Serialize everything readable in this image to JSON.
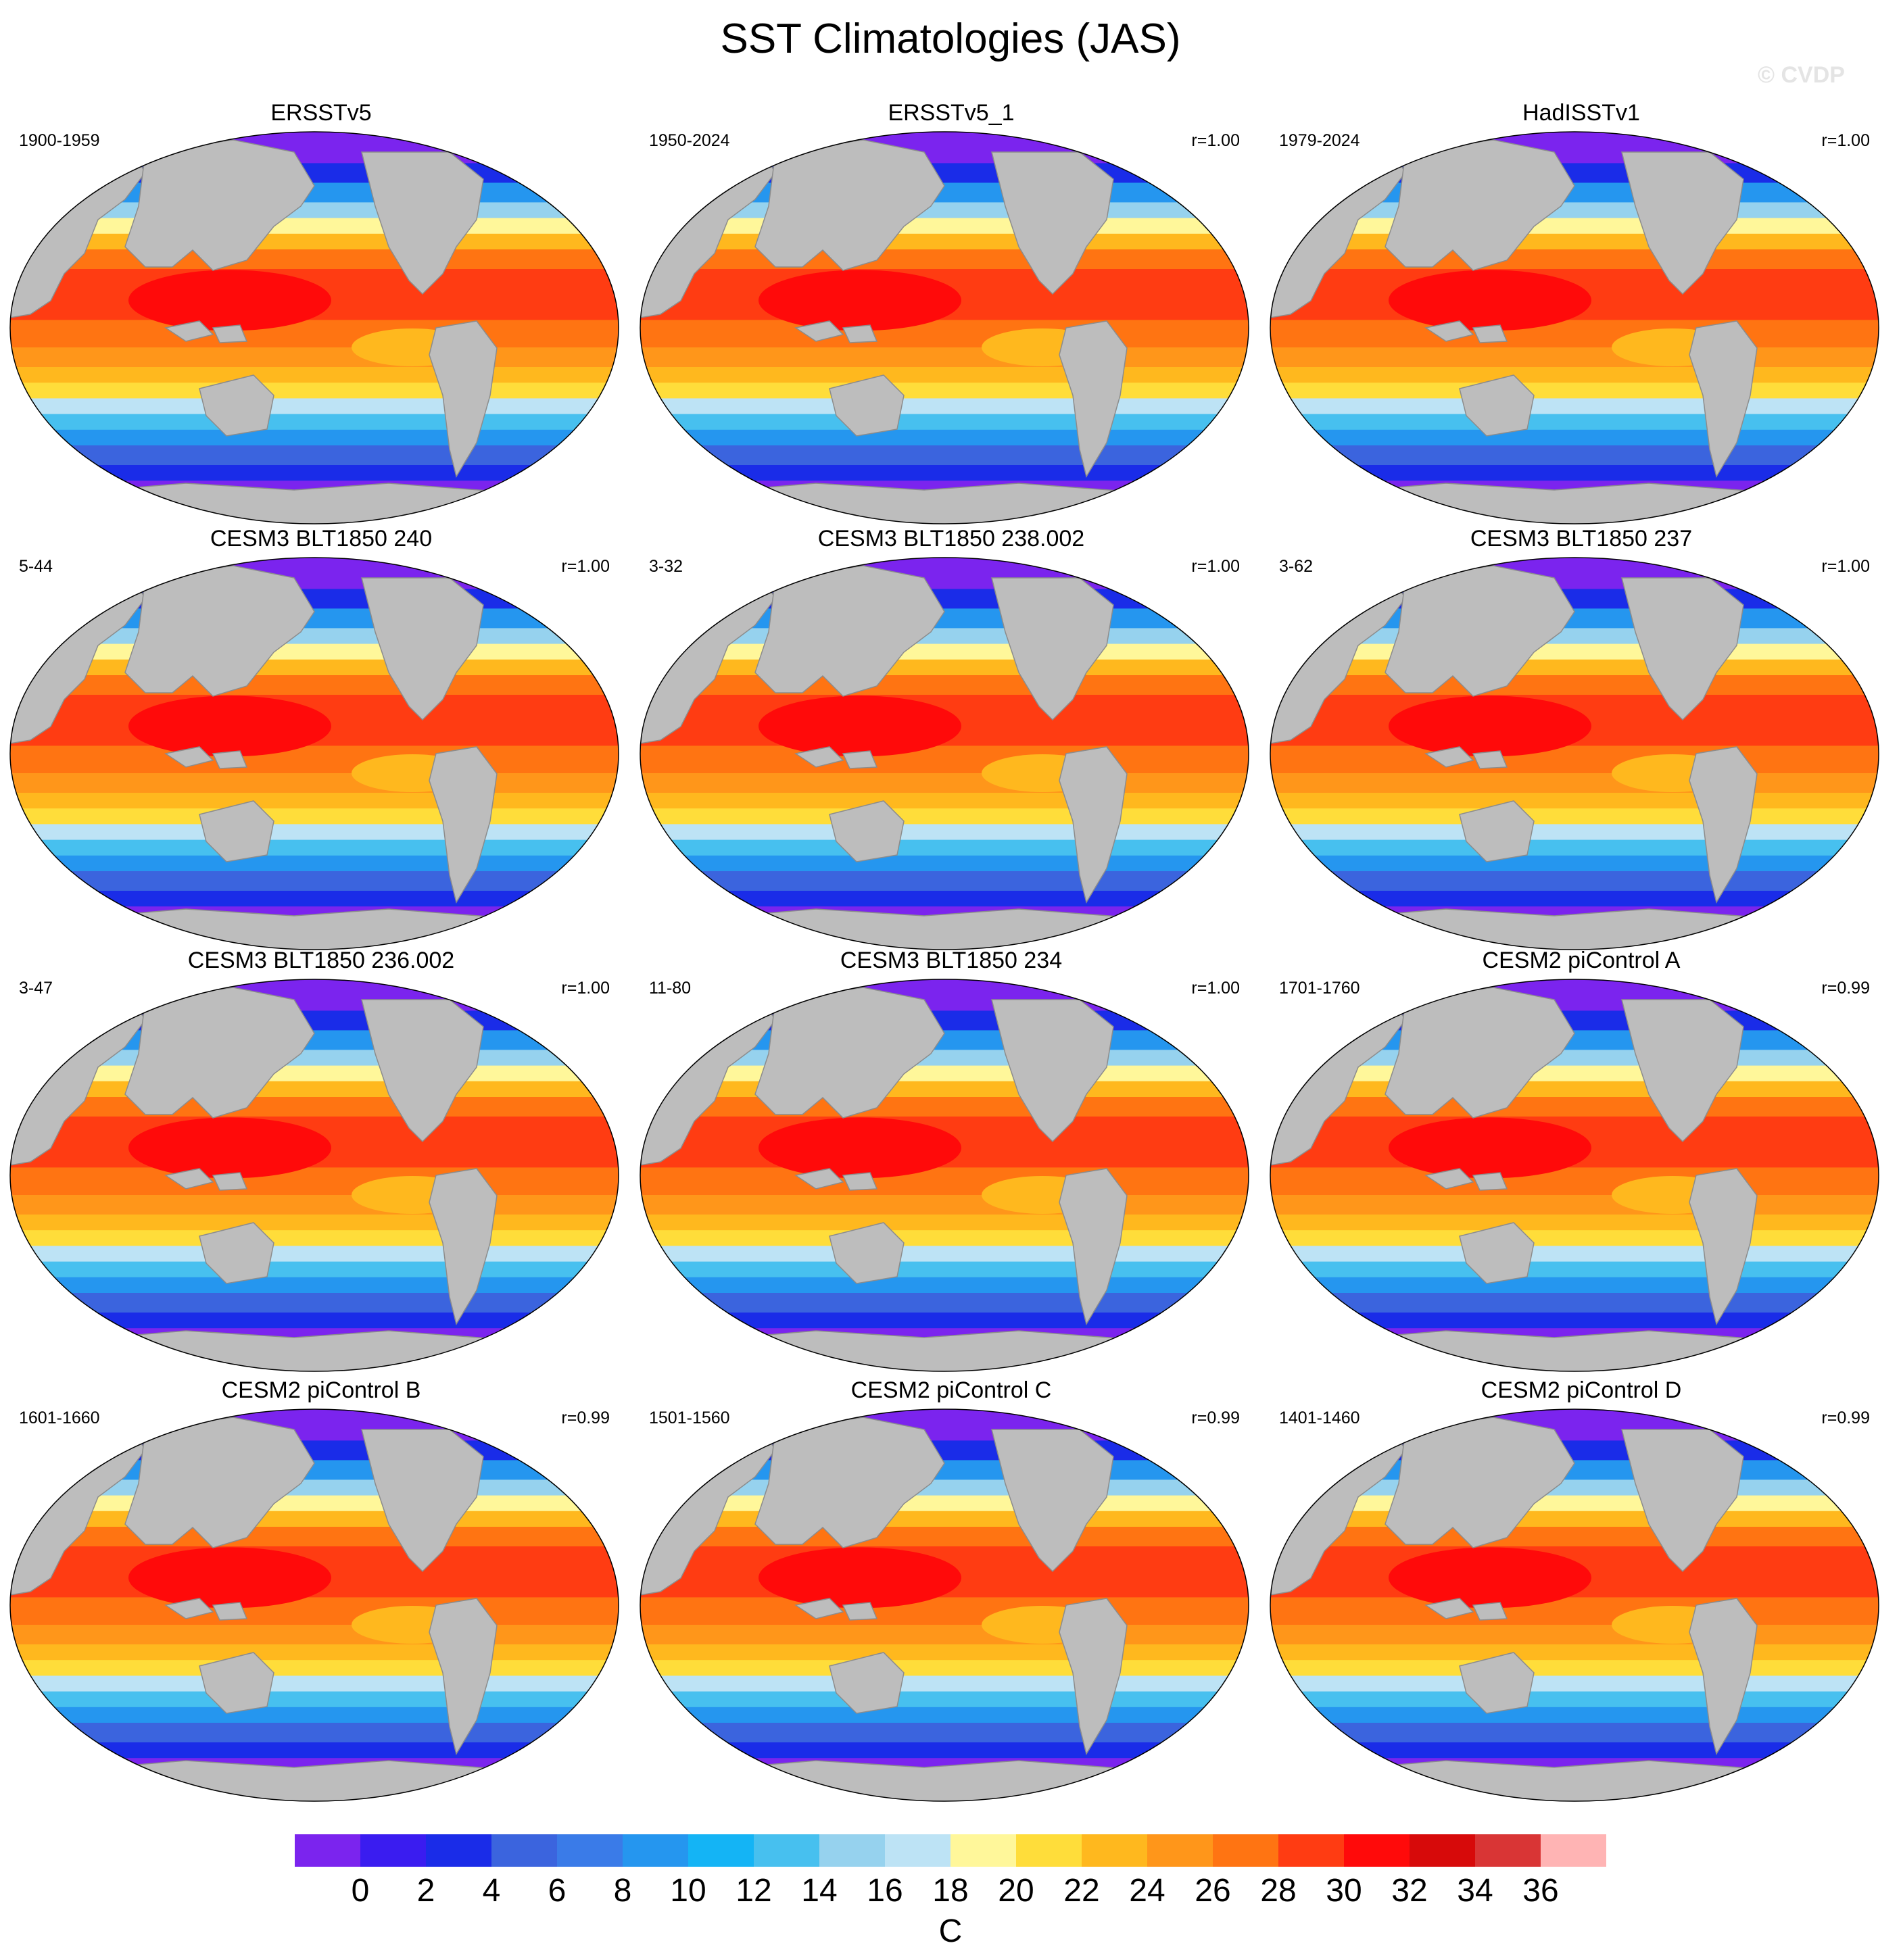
{
  "chart_data": {
    "type": "heatmap",
    "title": "SST Climatologies (JAS)",
    "watermark": "© CVDP",
    "units": "C",
    "colorbar": {
      "levels": [
        0,
        2,
        4,
        6,
        8,
        10,
        12,
        14,
        16,
        18,
        20,
        22,
        24,
        26,
        28,
        30,
        32,
        34,
        36
      ],
      "colors": [
        "#7b24ee",
        "#3a1cf0",
        "#1a2ce8",
        "#3b64de",
        "#3a7be8",
        "#2596ef",
        "#14b4f5",
        "#47c0ef",
        "#96d2ee",
        "#bde3f5",
        "#fff79a",
        "#ffdd3a",
        "#ffb81e",
        "#ff961a",
        "#ff7412",
        "#ff3c12",
        "#ff0a0a",
        "#d70a0a",
        "#d93535",
        "#ffb4b4"
      ]
    },
    "panels": [
      {
        "name": "ERSSTv5",
        "period": "1900-1959",
        "r": ""
      },
      {
        "name": "ERSSTv5_1",
        "period": "1950-2024",
        "r": "r=1.00"
      },
      {
        "name": "HadISSTv1",
        "period": "1979-2024",
        "r": "r=1.00"
      },
      {
        "name": "CESM3 BLT1850 240",
        "period": "5-44",
        "r": "r=1.00"
      },
      {
        "name": "CESM3 BLT1850 238.002",
        "period": "3-32",
        "r": "r=1.00"
      },
      {
        "name": "CESM3 BLT1850 237",
        "period": "3-62",
        "r": "r=1.00"
      },
      {
        "name": "CESM3 BLT1850 236.002",
        "period": "3-47",
        "r": "r=1.00"
      },
      {
        "name": "CESM3 BLT1850 234",
        "period": "11-80",
        "r": "r=1.00"
      },
      {
        "name": "CESM2 piControl A",
        "period": "1701-1760",
        "r": "r=0.99"
      },
      {
        "name": "CESM2 piControl B",
        "period": "1601-1660",
        "r": "r=0.99"
      },
      {
        "name": "CESM2 piControl C",
        "period": "1501-1560",
        "r": "r=0.99"
      },
      {
        "name": "CESM2 piControl D",
        "period": "1401-1460",
        "r": "r=0.99"
      }
    ]
  }
}
